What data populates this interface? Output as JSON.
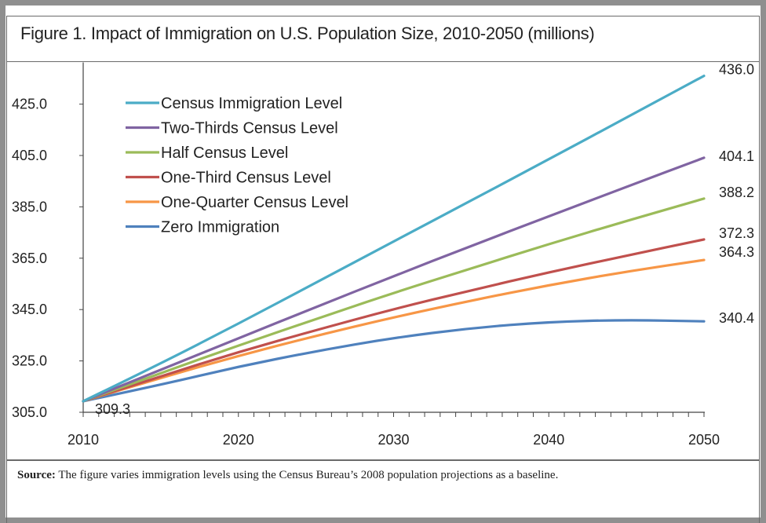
{
  "figure": {
    "title": "Figure 1. Impact of Immigration on U.S. Population Size, 2010-2050 (millions)",
    "source_label": "Source:",
    "source_text": "The figure varies immigration levels using the Census Bureau’s 2008 population projections as a baseline."
  },
  "chart_data": {
    "type": "line",
    "title": "Figure 1. Impact of Immigration on U.S. Population Size, 2010-2050 (millions)",
    "xlabel": "",
    "ylabel": "",
    "xlim": [
      2010,
      2050
    ],
    "ylim": [
      305.0,
      440.0
    ],
    "x_ticks": [
      2010,
      2020,
      2030,
      2040,
      2050
    ],
    "y_ticks": [
      "305.0",
      "325.0",
      "345.0",
      "365.0",
      "385.0",
      "405.0",
      "425.0"
    ],
    "grid": false,
    "legend_position": "top-left",
    "start_label": "309.3",
    "x": [
      2010,
      2015,
      2020,
      2025,
      2030,
      2035,
      2040,
      2045,
      2050
    ],
    "series": [
      {
        "name": "Census Immigration Level",
        "color": "#4bacc6",
        "end_label": "436.0",
        "values": [
          309.3,
          324.0,
          339.5,
          355.5,
          371.5,
          387.5,
          403.5,
          419.8,
          436.0
        ]
      },
      {
        "name": "Two-Thirds Census Level",
        "color": "#8064a2",
        "end_label": "404.1",
        "values": [
          309.3,
          321.5,
          333.8,
          346.0,
          358.0,
          369.8,
          381.3,
          392.8,
          404.1
        ]
      },
      {
        "name": "Half Census Level",
        "color": "#9bbb59",
        "end_label": "388.2",
        "values": [
          309.3,
          320.3,
          331.0,
          341.3,
          351.5,
          361.0,
          370.5,
          379.5,
          388.2
        ]
      },
      {
        "name": "One-Third Census Level",
        "color": "#c0504d",
        "end_label": "372.3",
        "values": [
          309.3,
          319.0,
          328.5,
          337.0,
          345.2,
          352.5,
          359.5,
          366.0,
          372.3
        ]
      },
      {
        "name": "One-Quarter Census Level",
        "color": "#f79646",
        "end_label": "364.3",
        "values": [
          309.3,
          318.4,
          327.0,
          334.8,
          342.0,
          348.5,
          354.5,
          359.8,
          364.3
        ]
      },
      {
        "name": "Zero Immigration",
        "color": "#4f81bd",
        "end_label": "340.4",
        "values": [
          309.3,
          315.7,
          322.8,
          328.8,
          334.0,
          337.8,
          340.2,
          341.0,
          340.4
        ]
      }
    ]
  }
}
